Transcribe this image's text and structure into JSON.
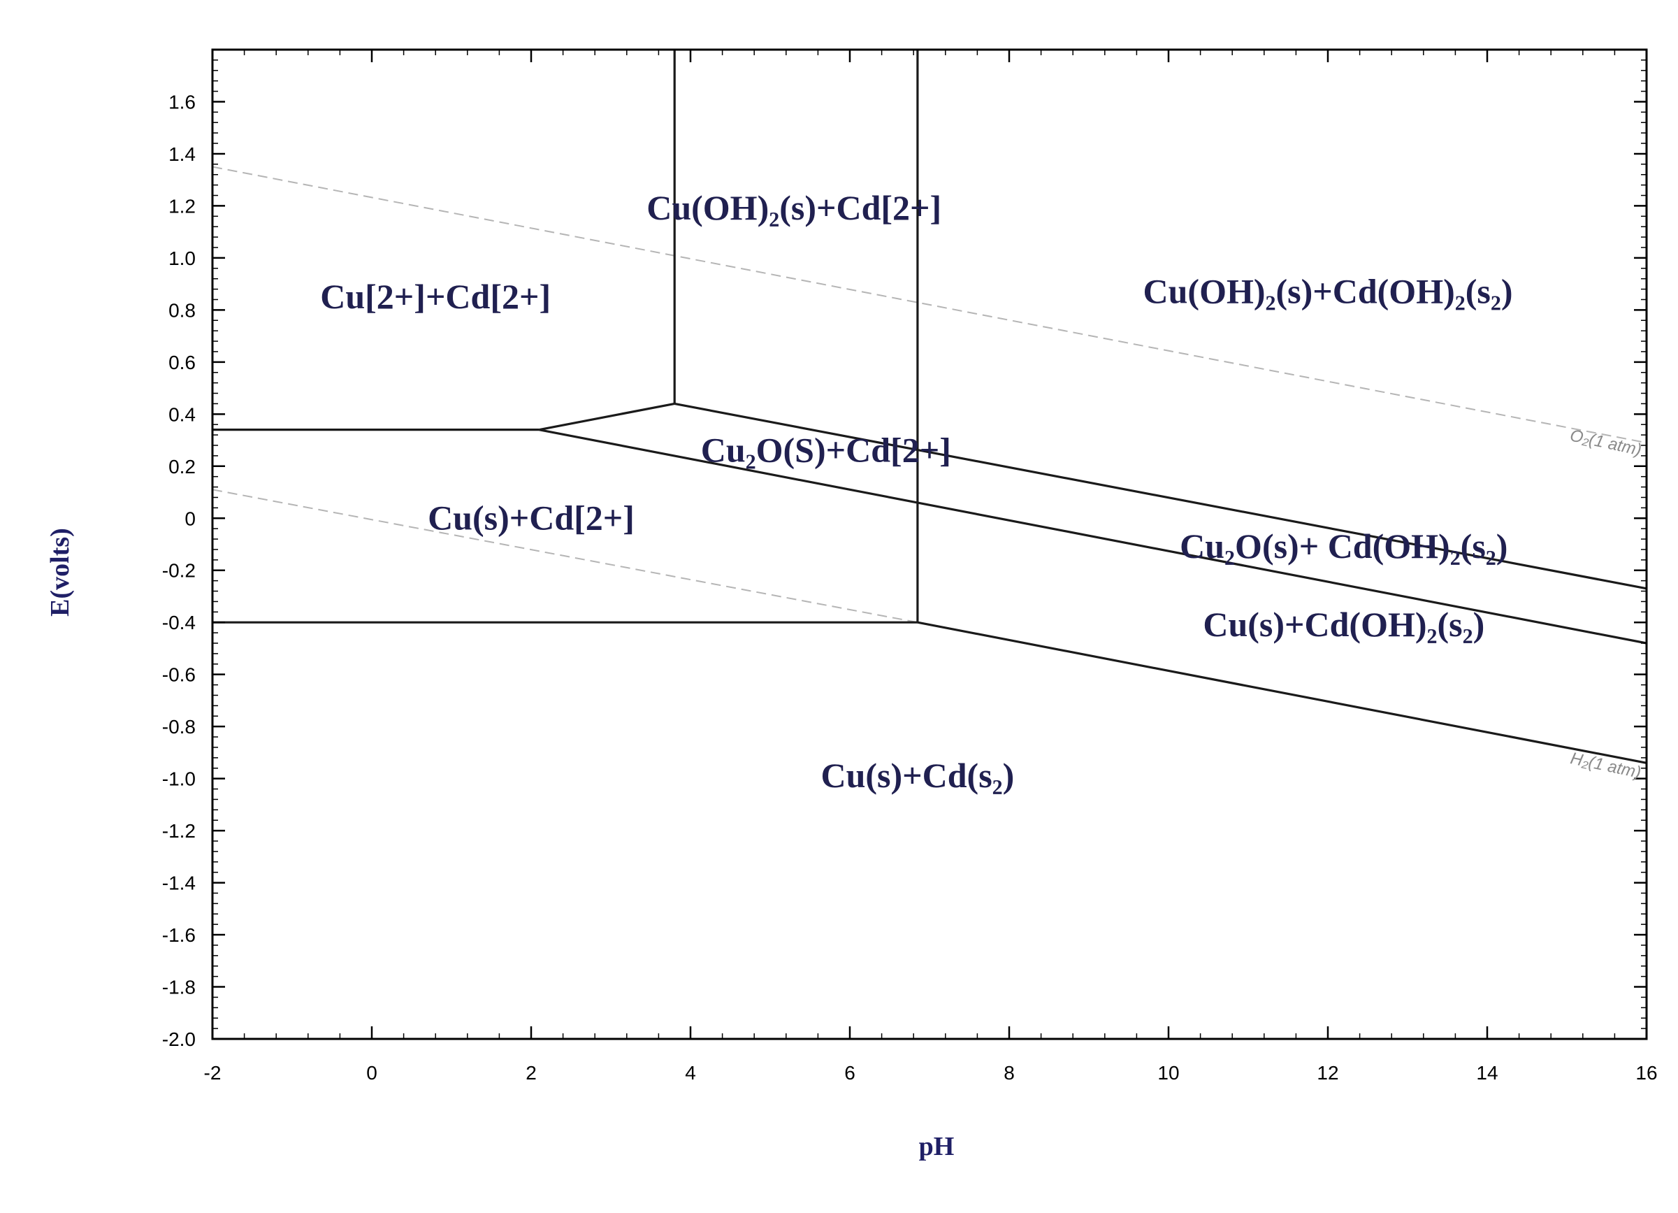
{
  "chart_data": {
    "type": "line",
    "title": "",
    "xlabel": "pH",
    "ylabel": "E(volts)",
    "xlim": [
      -2,
      16
    ],
    "ylim": [
      -2.0,
      1.8
    ],
    "x_ticks": [
      -2,
      0,
      2,
      4,
      6,
      8,
      10,
      12,
      14,
      16
    ],
    "x_tick_labels": [
      "-2",
      "0",
      "2",
      "4",
      "6",
      "8",
      "10",
      "12",
      "14",
      "16"
    ],
    "y_ticks": [
      1.6,
      1.4,
      1.2,
      1.0,
      0.8,
      0.6,
      0.4,
      0.2,
      0,
      -0.2,
      -0.4,
      -0.6,
      -0.8,
      -1.0,
      -1.2,
      -1.4,
      -1.6,
      -1.8,
      -2.0
    ],
    "y_tick_labels": [
      "1.6",
      "1.4",
      "1.2",
      "1.0",
      "0.8",
      "0.6",
      "0.4",
      "0.2",
      "0",
      "-0.2",
      "-0.4",
      "-0.6",
      "-0.8",
      "-1.0",
      "-1.2",
      "-1.4",
      "-1.6",
      "-1.8",
      "-2.0"
    ],
    "boundaries": [
      {
        "points": [
          [
            -2,
            0.34
          ],
          [
            2.1,
            0.34
          ]
        ]
      },
      {
        "points": [
          [
            2.1,
            0.34
          ],
          [
            3.8,
            0.44
          ]
        ]
      },
      {
        "points": [
          [
            3.8,
            0.44
          ],
          [
            3.8,
            1.8
          ]
        ]
      },
      {
        "points": [
          [
            6.85,
            -0.4
          ],
          [
            6.85,
            1.8
          ]
        ]
      },
      {
        "points": [
          [
            3.8,
            0.44
          ],
          [
            16,
            -0.27
          ]
        ]
      },
      {
        "points": [
          [
            2.1,
            0.34
          ],
          [
            16,
            -0.48
          ]
        ]
      },
      {
        "points": [
          [
            -2,
            -0.4
          ],
          [
            6.85,
            -0.4
          ]
        ]
      },
      {
        "points": [
          [
            6.85,
            -0.4
          ],
          [
            16,
            -0.94
          ]
        ]
      }
    ],
    "reference_lines": [
      {
        "label": "O₂(1 atm)",
        "points": [
          [
            -2,
            1.35
          ],
          [
            16,
            0.29
          ]
        ]
      },
      {
        "label": "H₂(1 atm)",
        "points": [
          [
            -2,
            0.11
          ],
          [
            6.85,
            -0.4
          ]
        ]
      }
    ],
    "regions": [
      {
        "label": "Cu[2+]+Cd[2+]",
        "x": 0.8,
        "y": 0.85
      },
      {
        "label": "Cu(OH)₂(s)+Cd[2+]",
        "x": 5.3,
        "y": 1.19
      },
      {
        "label": "Cu(OH)₂(s)+Cd(OH)₂(s₂)",
        "x": 12.0,
        "y": 0.87
      },
      {
        "label": "Cu₂O(S)+Cd[2+]",
        "x": 5.7,
        "y": 0.26
      },
      {
        "label": "Cu(s)+Cd[2+]",
        "x": 2.0,
        "y": 0.0
      },
      {
        "label": "Cu₂O(s)+ Cd(OH)₂(s₂)",
        "x": 12.2,
        "y": -0.11
      },
      {
        "label": "Cu(s)+Cd(OH)₂(s₂)",
        "x": 12.2,
        "y": -0.41
      },
      {
        "label": "Cu(s)+Cd(s₂)",
        "x": 6.85,
        "y": -0.99
      }
    ]
  }
}
